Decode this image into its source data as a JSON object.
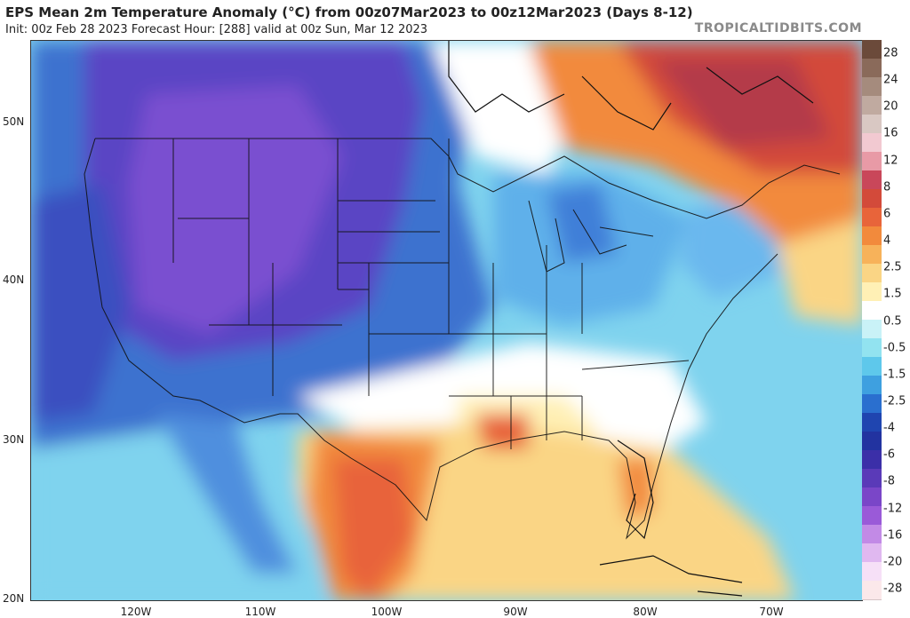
{
  "header": {
    "title": "EPS Mean 2m Temperature Anomaly (°C) from 00z07Mar2023 to 00z12Mar2023 (Days 8-12)",
    "subtitle": "Init: 00z Feb 28 2023   Forecast Hour: [288]   valid at 00z Sun, Mar 12 2023",
    "site": "TROPICALTIDBITS.COM"
  },
  "map": {
    "lat_labels": [
      "50N",
      "40N",
      "30N",
      "20N"
    ],
    "lon_labels": [
      "120W",
      "110W",
      "100W",
      "90W",
      "80W",
      "70W"
    ]
  },
  "colorbar": {
    "labels": [
      "28",
      "24",
      "20",
      "16",
      "12",
      "8",
      "6",
      "4",
      "2.5",
      "1.5",
      "0.5",
      "-0.5",
      "-1.5",
      "-2.5",
      "-4",
      "-6",
      "-8",
      "-12",
      "-16",
      "-20",
      "-28"
    ],
    "colors": [
      "#6b4a3a",
      "#8a6a5a",
      "#a58b7d",
      "#c0aaa0",
      "#d9c8c3",
      "#f2c9d1",
      "#e89aa6",
      "#c9475a",
      "#d34a3a",
      "#e8643a",
      "#f28a3c",
      "#f7b25a",
      "#fad585",
      "#fff0b5",
      "#ffffff",
      "#c9f2f7",
      "#92e3f0",
      "#5ec8eb",
      "#3ea0e0",
      "#2a6fcf",
      "#1f45b0",
      "#2233a0",
      "#3b2fa8",
      "#5a3ab8",
      "#7a46c8",
      "#9a5ad8",
      "#c28ae6",
      "#e0b8f0",
      "#f6e0f7",
      "#fbe8ea"
    ]
  }
}
